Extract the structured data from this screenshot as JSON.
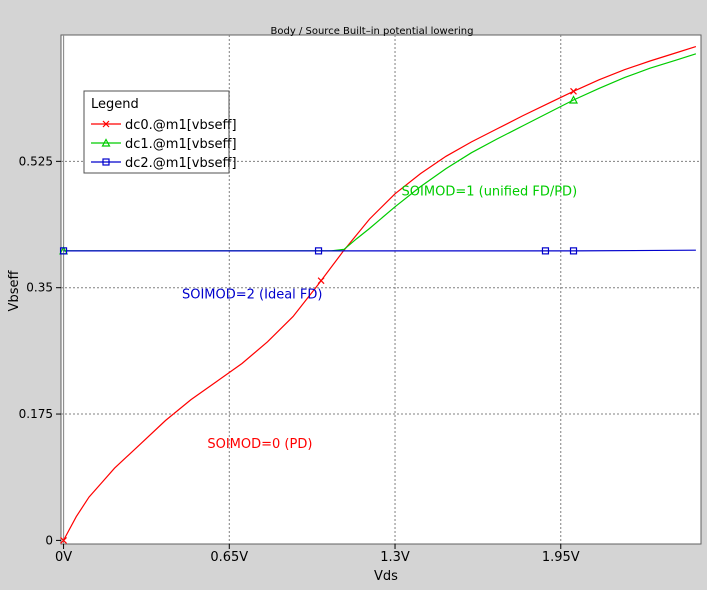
{
  "colors": {
    "dc0": "#ff0000",
    "dc1": "#00cc00",
    "dc2": "#0000cc",
    "grid": "#808080",
    "plot_bg": "#ffffff",
    "window_bg": "#d4d4d4"
  },
  "chart_data": {
    "type": "line",
    "title": "Body / Source Built–in potential lowering",
    "xlabel": "Vds",
    "ylabel": "Vbseff",
    "xlim": [
      -0.01,
      2.5
    ],
    "ylim": [
      -0.005,
      0.7
    ],
    "grid": true,
    "x_ticks": [
      0,
      0.65,
      1.3,
      1.95
    ],
    "x_tick_labels": [
      "0V",
      "0.65V",
      "1.3V",
      "1.95V"
    ],
    "y_ticks": [
      0,
      0.175,
      0.35,
      0.525
    ],
    "y_tick_labels": [
      "0",
      "0.175",
      "0.35",
      "0.525"
    ],
    "legend": {
      "title": "Legend",
      "position": "top-left",
      "entries": [
        "dc0.@m1[vbseff]",
        "dc1.@m1[vbseff]",
        "dc2.@m1[vbseff]"
      ]
    },
    "annotations": [
      {
        "text": "SOIMOD=1 (unified FD/PD)",
        "series": "dc1",
        "x": 1.67,
        "y": 0.478
      },
      {
        "text": "SOIMOD=2 (Ideal FD)",
        "series": "dc2",
        "x": 0.74,
        "y": 0.335
      },
      {
        "text": "SOIMOD=0 (PD)",
        "series": "dc0",
        "x": 0.77,
        "y": 0.128
      }
    ],
    "series": [
      {
        "name": "dc0.@m1[vbseff]",
        "color_key": "dc0",
        "marker": "x",
        "x": [
          0,
          0.05,
          0.1,
          0.15,
          0.2,
          0.3,
          0.4,
          0.5,
          0.6,
          0.7,
          0.8,
          0.9,
          1.0,
          1.1,
          1.2,
          1.3,
          1.4,
          1.5,
          1.6,
          1.7,
          1.8,
          1.9,
          2.0,
          2.1,
          2.2,
          2.3,
          2.4,
          2.48
        ],
        "y": [
          0,
          0.033,
          0.06,
          0.08,
          0.1,
          0.133,
          0.166,
          0.195,
          0.22,
          0.245,
          0.275,
          0.31,
          0.355,
          0.402,
          0.445,
          0.48,
          0.508,
          0.532,
          0.552,
          0.57,
          0.588,
          0.605,
          0.622,
          0.638,
          0.652,
          0.664,
          0.675,
          0.684
        ],
        "marker_x": [
          0,
          1.01,
          2.0
        ]
      },
      {
        "name": "dc1.@m1[vbseff]",
        "color_key": "dc1",
        "marker": "triangle",
        "x": [
          0,
          0.15,
          0.3,
          0.5,
          0.7,
          0.9,
          1.0,
          1.05,
          1.1,
          1.15,
          1.2,
          1.3,
          1.4,
          1.5,
          1.6,
          1.7,
          1.8,
          1.9,
          2.0,
          2.1,
          2.2,
          2.3,
          2.4,
          2.48
        ],
        "y": [
          0.401,
          0.401,
          0.401,
          0.401,
          0.401,
          0.401,
          0.401,
          0.401,
          0.403,
          0.418,
          0.432,
          0.462,
          0.49,
          0.515,
          0.537,
          0.556,
          0.574,
          0.592,
          0.61,
          0.626,
          0.641,
          0.654,
          0.665,
          0.674
        ],
        "marker_x": [
          0,
          2.0
        ]
      },
      {
        "name": "dc2.@m1[vbseff]",
        "color_key": "dc2",
        "marker": "square",
        "x": [
          0,
          0.5,
          1.0,
          1.5,
          2.0,
          2.48
        ],
        "y": [
          0.401,
          0.401,
          0.401,
          0.401,
          0.401,
          0.402
        ],
        "marker_x": [
          0,
          1.0,
          1.89,
          2.0
        ]
      }
    ]
  }
}
